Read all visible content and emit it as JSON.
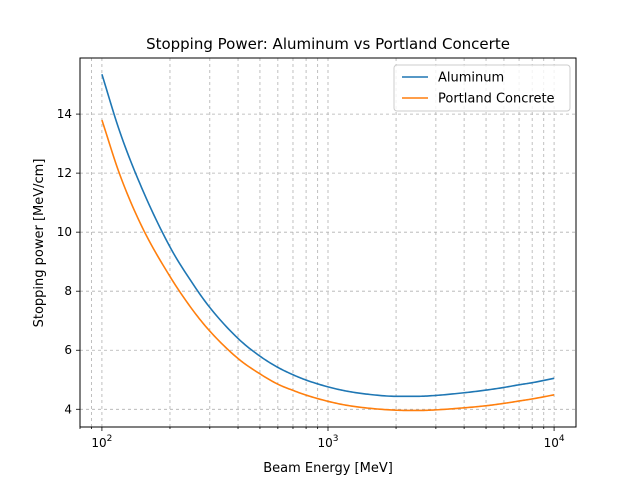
{
  "chart_data": {
    "type": "line",
    "title": "Stopping Power: Aluminum vs Portland Concerte",
    "xlabel": "Beam Energy [MeV]",
    "ylabel": "Stopping power [MeV/cm]",
    "xscale": "log",
    "xlim": [
      80,
      12500
    ],
    "ylim": [
      3.4,
      15.9
    ],
    "xticks": [
      {
        "value": 100,
        "base": "10",
        "exp": "2"
      },
      {
        "value": 1000,
        "base": "10",
        "exp": "3"
      },
      {
        "value": 10000,
        "base": "10",
        "exp": "4"
      }
    ],
    "yticks": [
      4,
      6,
      8,
      10,
      12,
      14
    ],
    "grid": "both, major and minor, dashed",
    "legend_position": "top-right",
    "series": [
      {
        "name": "Aluminum",
        "color": "#1f77b4",
        "x": [
          100,
          120,
          150,
          200,
          250,
          300,
          400,
          500,
          600,
          700,
          800,
          1000,
          1200,
          1500,
          2000,
          2500,
          3000,
          4000,
          5000,
          6000,
          7000,
          8000,
          10000
        ],
        "y": [
          15.35,
          13.4,
          11.5,
          9.5,
          8.3,
          7.45,
          6.4,
          5.8,
          5.42,
          5.17,
          4.99,
          4.76,
          4.62,
          4.51,
          4.44,
          4.44,
          4.47,
          4.56,
          4.65,
          4.74,
          4.83,
          4.9,
          5.05
        ]
      },
      {
        "name": "Portland Concrete",
        "color": "#ff7f0e",
        "x": [
          100,
          120,
          150,
          200,
          250,
          300,
          400,
          500,
          600,
          700,
          800,
          1000,
          1200,
          1500,
          2000,
          2500,
          3000,
          4000,
          5000,
          6000,
          7000,
          8000,
          10000
        ],
        "y": [
          13.8,
          11.95,
          10.2,
          8.5,
          7.4,
          6.65,
          5.72,
          5.2,
          4.85,
          4.64,
          4.48,
          4.27,
          4.14,
          4.04,
          3.97,
          3.96,
          3.98,
          4.05,
          4.12,
          4.2,
          4.28,
          4.35,
          4.49
        ]
      }
    ]
  }
}
